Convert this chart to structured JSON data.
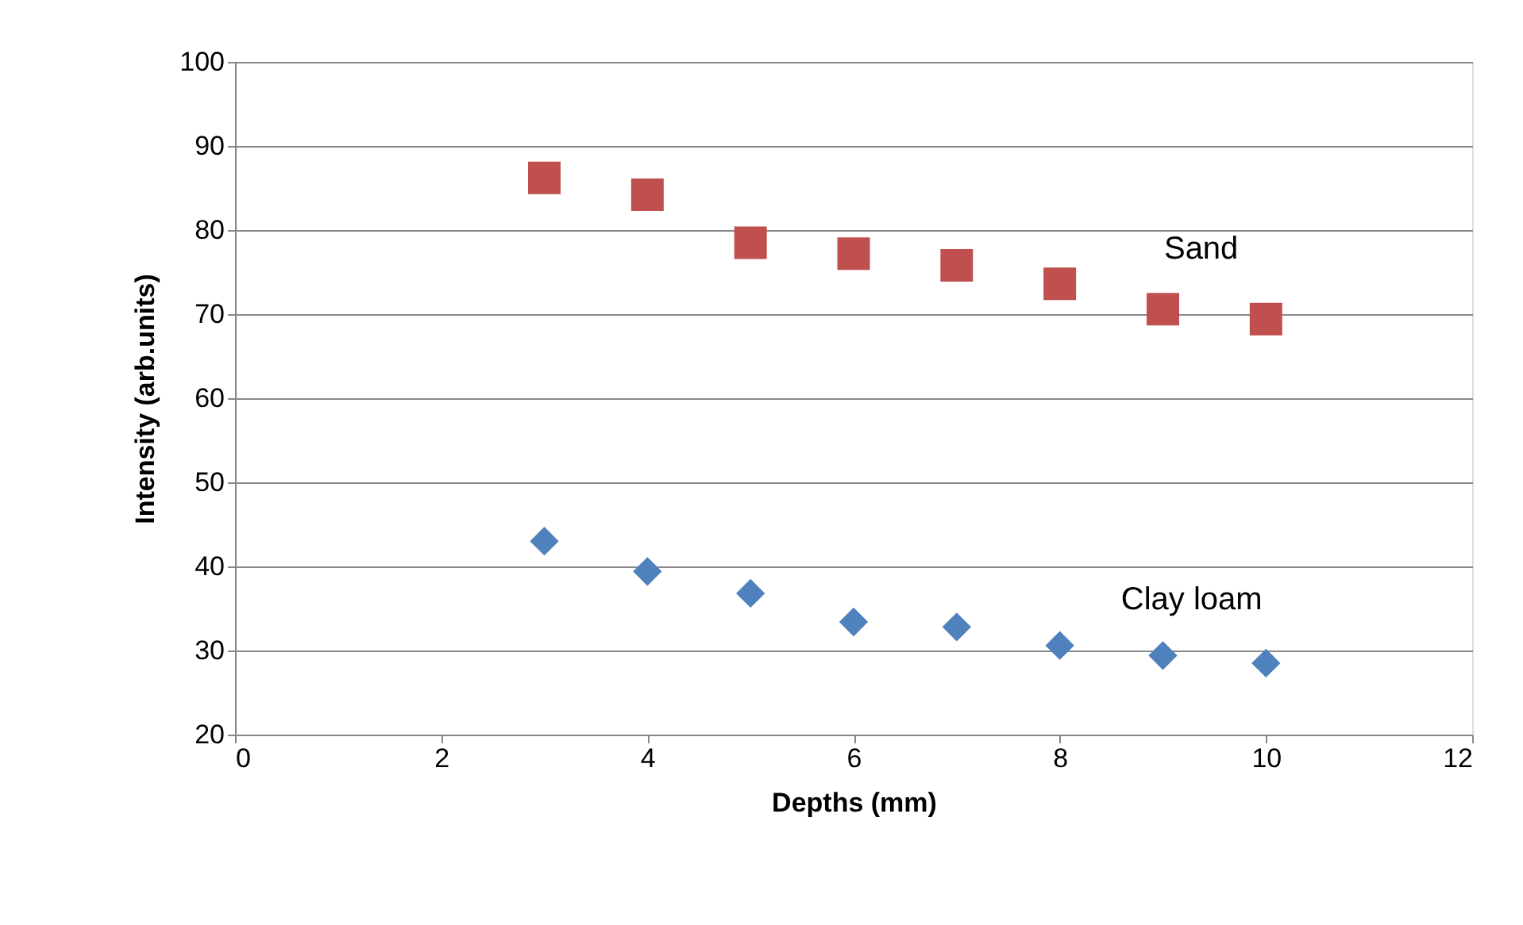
{
  "chart_data": {
    "type": "scatter",
    "xlabel": "Depths (mm)",
    "ylabel": "Intensity (arb.units)",
    "x": [
      3,
      4,
      5,
      6,
      7,
      8,
      9,
      10
    ],
    "series": [
      {
        "name": "Sand",
        "color": "#c0504d",
        "marker": "square",
        "values": [
          86.2,
          84.2,
          78.5,
          77.2,
          75.8,
          73.6,
          70.6,
          69.4
        ]
      },
      {
        "name": "Clay loam",
        "color": "#4f81bd",
        "marker": "diamond",
        "values": [
          43.0,
          39.4,
          36.8,
          33.4,
          32.8,
          30.6,
          29.4,
          28.5
        ]
      }
    ],
    "xlim": [
      0,
      12
    ],
    "xticks": [
      0,
      2,
      4,
      6,
      8,
      10,
      12
    ],
    "ylim": [
      20,
      100
    ],
    "yticks": [
      20,
      30,
      40,
      50,
      60,
      70,
      80,
      90,
      100
    ],
    "grid": "y"
  }
}
